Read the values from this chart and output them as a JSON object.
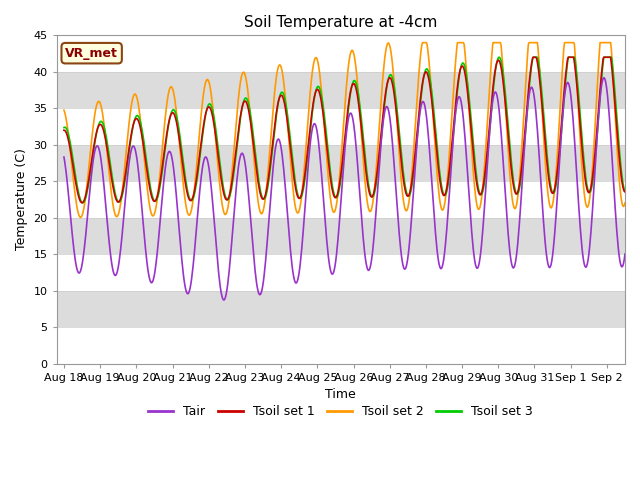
{
  "title": "Soil Temperature at -4cm",
  "xlabel": "Time",
  "ylabel": "Temperature (C)",
  "ylim": [
    0,
    45
  ],
  "annotation": "VR_met",
  "legend": [
    "Tair",
    "Tsoil set 1",
    "Tsoil set 2",
    "Tsoil set 3"
  ],
  "colors": {
    "Tair": "#9933cc",
    "Tsoil set 1": "#cc0000",
    "Tsoil set 2": "#ff9900",
    "Tsoil set 3": "#00cc00"
  },
  "background_color": "#ffffff",
  "grid_band_color": "#dcdcdc",
  "xtick_labels": [
    "Aug 18",
    "Aug 19",
    "Aug 20",
    "Aug 21",
    "Aug 22",
    "Aug 23",
    "Aug 24",
    "Aug 25",
    "Aug 26",
    "Aug 27",
    "Aug 28",
    "Aug 29",
    "Aug 30",
    "Aug 31",
    "Sep 1",
    "Sep 2"
  ],
  "xtick_positions": [
    0,
    1,
    2,
    3,
    4,
    5,
    6,
    7,
    8,
    9,
    10,
    11,
    12,
    13,
    14,
    15
  ],
  "ytick_positions": [
    0,
    5,
    10,
    15,
    20,
    25,
    30,
    35,
    40,
    45
  ],
  "title_fontsize": 11,
  "label_fontsize": 9,
  "tick_fontsize": 8,
  "legend_fontsize": 9,
  "linewidth": 1.2
}
